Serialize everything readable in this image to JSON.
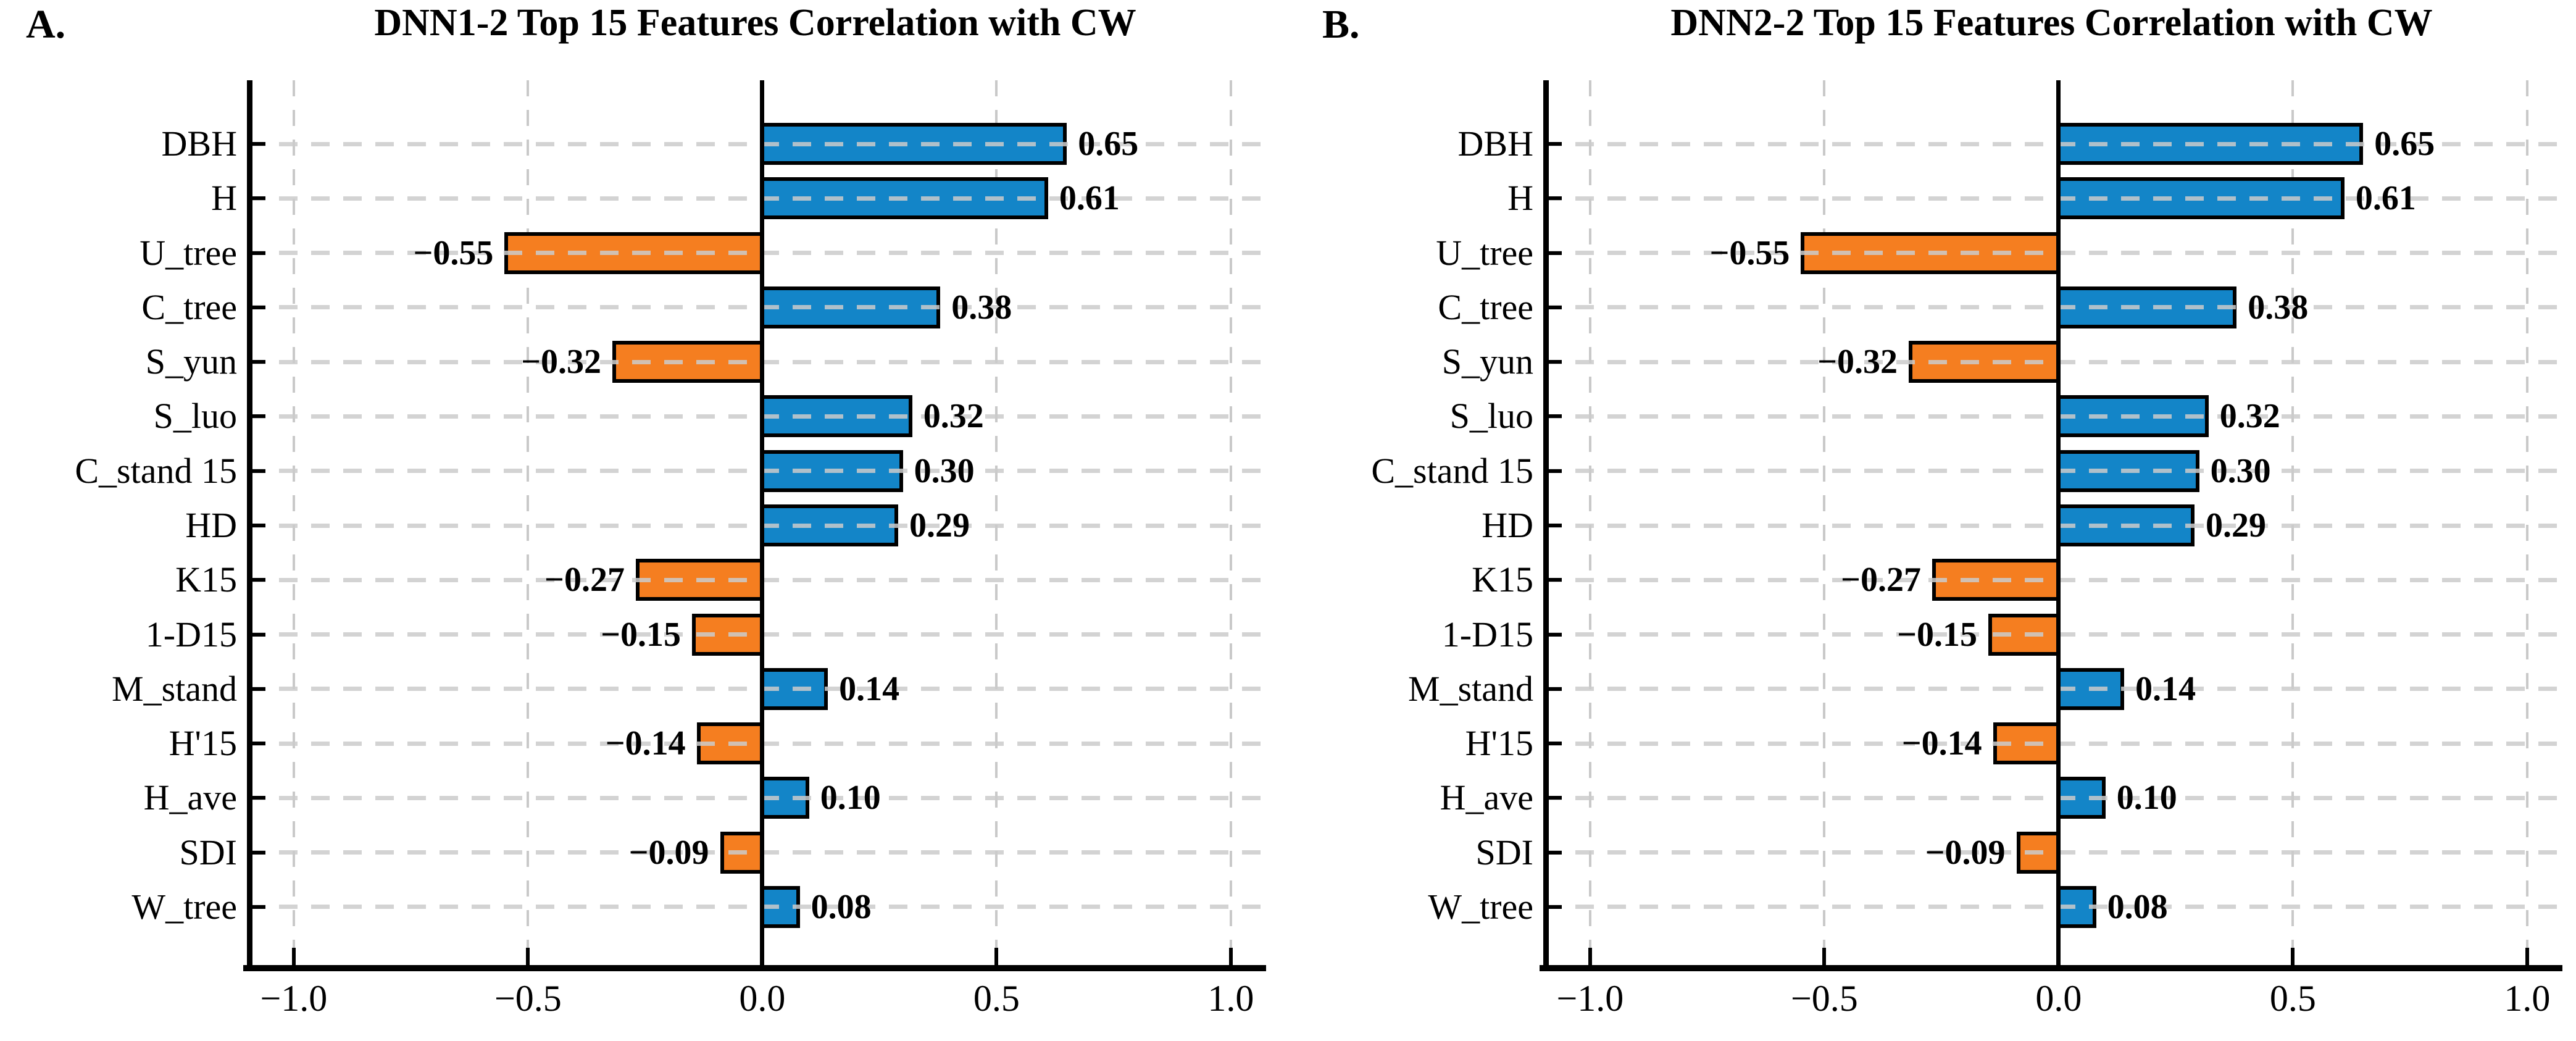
{
  "figure": {
    "panels": [
      {
        "letter": "A.",
        "title": "DNN1-2 Top 15 Features Correlation with CW"
      },
      {
        "letter": "B.",
        "title": "DNN2-2 Top 15 Features Correlation with CW"
      }
    ],
    "x_ticks": [
      "−1.0",
      "−0.5",
      "0.0",
      "0.5",
      "1.0"
    ],
    "x_tick_values": [
      -1.0,
      -0.5,
      0.0,
      0.5,
      1.0
    ],
    "colors": {
      "positive": "#1385C8",
      "negative": "#F57E20",
      "bar_edge": "#000000",
      "gridline": "#CBCBCB",
      "zero_line": "#000000",
      "axis": "#000000",
      "background": "#FFFFFF"
    }
  },
  "chart_data": [
    {
      "type": "bar",
      "orientation": "horizontal",
      "title": "DNN1-2 Top 15 Features Correlation with CW",
      "categories": [
        "DBH",
        "H",
        "U_tree",
        "C_tree",
        "S_yun",
        "S_luo",
        "C_stand 15",
        "HD",
        "K15",
        "1-D15",
        "M_stand",
        "H'15",
        "H_ave",
        "SDI",
        "W_tree"
      ],
      "values": [
        0.65,
        0.61,
        -0.55,
        0.38,
        -0.32,
        0.32,
        0.3,
        0.29,
        -0.27,
        -0.15,
        0.14,
        -0.14,
        0.1,
        -0.09,
        0.08
      ],
      "value_labels": [
        "0.65",
        "0.61",
        "−0.55",
        "0.38",
        "−0.32",
        "0.32",
        "0.30",
        "0.29",
        "−0.27",
        "−0.15",
        "0.14",
        "−0.14",
        "0.10",
        "−0.09",
        "0.08"
      ],
      "xlim": [
        -1.1,
        1.07
      ],
      "xlabel": "",
      "ylabel": "",
      "grid": true,
      "legend_position": "none",
      "color_rule": "blue for positive correlations, orange for negative correlations"
    },
    {
      "type": "bar",
      "orientation": "horizontal",
      "title": "DNN2-2 Top 15 Features Correlation with CW",
      "categories": [
        "DBH",
        "H",
        "U_tree",
        "C_tree",
        "S_yun",
        "S_luo",
        "C_stand 15",
        "HD",
        "K15",
        "1-D15",
        "M_stand",
        "H'15",
        "H_ave",
        "SDI",
        "W_tree"
      ],
      "values": [
        0.65,
        0.61,
        -0.55,
        0.38,
        -0.32,
        0.32,
        0.3,
        0.29,
        -0.27,
        -0.15,
        0.14,
        -0.14,
        0.1,
        -0.09,
        0.08
      ],
      "value_labels": [
        "0.65",
        "0.61",
        "−0.55",
        "0.38",
        "−0.32",
        "0.32",
        "0.30",
        "0.29",
        "−0.27",
        "−0.15",
        "0.14",
        "−0.14",
        "0.10",
        "−0.09",
        "0.08"
      ],
      "xlim": [
        -1.1,
        1.07
      ],
      "xlabel": "",
      "ylabel": "",
      "grid": true,
      "legend_position": "none",
      "color_rule": "blue for positive correlations, orange for negative correlations"
    }
  ]
}
